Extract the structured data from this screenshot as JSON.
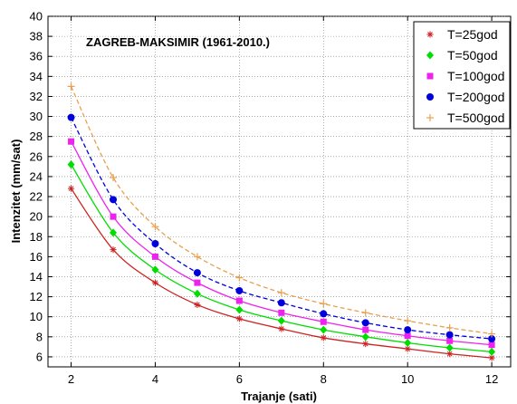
{
  "chart_data": {
    "type": "line",
    "title": "",
    "annotation": "ZAGREB-MAKSIMIR (1961-2010.)",
    "xlabel": "Trajanje (sati)",
    "ylabel": "Intenzitet (mm/sat)",
    "xlim": [
      1.45,
      12.45
    ],
    "ylim": [
      5,
      40
    ],
    "xticks": [
      2,
      4,
      6,
      8,
      10,
      12
    ],
    "yticks": [
      6,
      8,
      10,
      12,
      14,
      16,
      18,
      20,
      22,
      24,
      26,
      28,
      30,
      32,
      34,
      36,
      38,
      40
    ],
    "grid": true,
    "legend_position": "top-right",
    "x": [
      2,
      3,
      4,
      5,
      6,
      7,
      8,
      9,
      10,
      11,
      12
    ],
    "series": [
      {
        "name": "T=25god",
        "marker": "asterisk",
        "color": "#cc2222",
        "line_style": "solid",
        "values": [
          22.8,
          16.7,
          13.4,
          11.2,
          9.8,
          8.8,
          7.9,
          7.3,
          6.8,
          6.3,
          5.9
        ]
      },
      {
        "name": "T=50god",
        "marker": "diamond",
        "color": "#00dd00",
        "line_style": "solid",
        "values": [
          25.2,
          18.4,
          14.7,
          12.3,
          10.7,
          9.6,
          8.7,
          8.0,
          7.4,
          6.9,
          6.5
        ]
      },
      {
        "name": "T=100god",
        "marker": "square",
        "color": "#ee22ee",
        "line_style": "solid",
        "values": [
          27.5,
          20.0,
          16.0,
          13.4,
          11.6,
          10.4,
          9.5,
          8.7,
          8.1,
          7.6,
          7.2
        ]
      },
      {
        "name": "T=200god",
        "marker": "circle",
        "color": "#0000dd",
        "line_style": "dashed",
        "values": [
          29.9,
          21.7,
          17.3,
          14.4,
          12.6,
          11.4,
          10.3,
          9.4,
          8.7,
          8.2,
          7.8
        ]
      },
      {
        "name": "T=500god",
        "marker": "plus",
        "color": "#e8a050",
        "line_style": "dashed",
        "values": [
          33.0,
          23.9,
          19.0,
          16.0,
          13.9,
          12.4,
          11.3,
          10.4,
          9.6,
          8.9,
          8.3
        ]
      }
    ]
  }
}
